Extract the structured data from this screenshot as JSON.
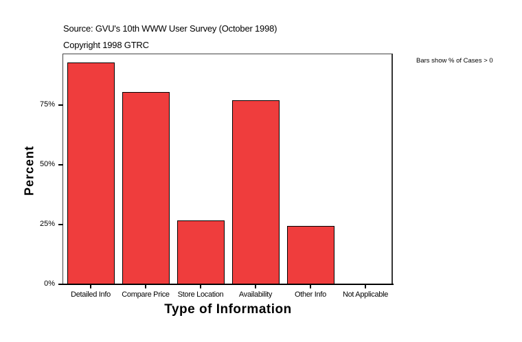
{
  "header": {
    "source": "Source: GVU's 10th WWW User Survey (October 1998)",
    "copyright": "Copyright 1998 GTRC"
  },
  "note": "Bars show % of Cases > 0",
  "colors": {
    "bar": "#EF3D3D",
    "frame": "#444444"
  },
  "chart_data": {
    "type": "bar",
    "title": "",
    "categories": [
      "Detailed Info",
      "Compare Price",
      "Store Location",
      "Availability",
      "Other Info",
      "Not Applicable"
    ],
    "values": [
      92.8,
      80.5,
      26.7,
      77.0,
      24.4,
      0.3
    ],
    "xlabel": "Type of Information",
    "ylabel": "Percent",
    "ylim": [
      0,
      100
    ],
    "yticks": [
      "0%",
      "25%",
      "50%",
      "75%"
    ],
    "grid": false,
    "legend": null,
    "annotation": "Bars show % of Cases > 0"
  }
}
